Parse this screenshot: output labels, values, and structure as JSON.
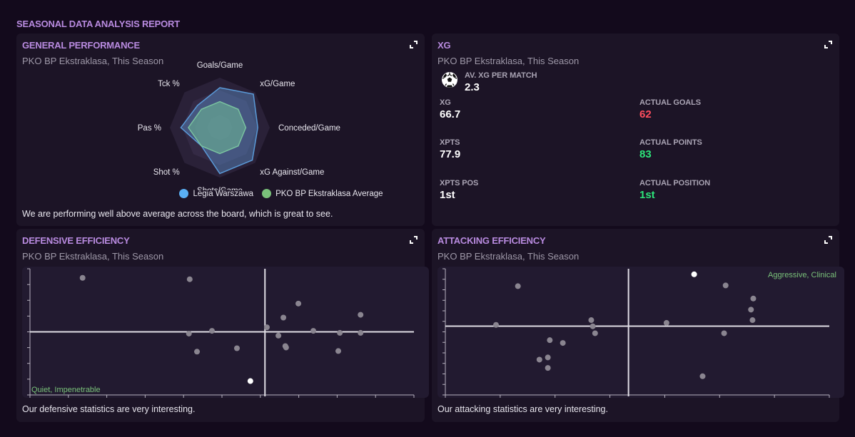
{
  "report_title": "SEASONAL DATA ANALYSIS REPORT",
  "icons": {
    "expand": "expand-icon",
    "ball": "football-icon"
  },
  "colors": {
    "accent": "#b98be0",
    "team": "#5ab0f5",
    "league_avg": "#7ac27a",
    "negative": "#ff4d5e",
    "positive": "#2de57a",
    "point": "#8a8590",
    "highlight_point": "#ffffff"
  },
  "general_performance": {
    "title": "GENERAL PERFORMANCE",
    "subtitle": "PKO BP Ekstraklasa, This Season",
    "footer": "We are performing well above average across the board, which is great to see.",
    "legend": [
      {
        "label": "Legia Warszawa",
        "color": "#5ab0f5"
      },
      {
        "label": "PKO BP Ekstraklasa Average",
        "color": "#7ac27a"
      }
    ]
  },
  "xg": {
    "title": "XG",
    "subtitle": "PKO BP Ekstraklasa, This Season",
    "av_xg_label": "AV. XG PER MATCH",
    "av_xg_value": "2.3",
    "stats": [
      {
        "label": "XG",
        "value": "66.7",
        "tone": "neutral"
      },
      {
        "label": "ACTUAL GOALS",
        "value": "62",
        "tone": "negative"
      },
      {
        "label": "XPTS",
        "value": "77.9",
        "tone": "neutral"
      },
      {
        "label": "ACTUAL POINTS",
        "value": "83",
        "tone": "positive"
      },
      {
        "label": "XPTS POS",
        "value": "1st",
        "tone": "neutral"
      },
      {
        "label": "ACTUAL POSITION",
        "value": "1st",
        "tone": "positive"
      }
    ]
  },
  "defensive_efficiency": {
    "title": "DEFENSIVE EFFICIENCY",
    "subtitle": "PKO BP Ekstraklasa, This Season",
    "footer": "Our defensive statistics are very interesting."
  },
  "attacking_efficiency": {
    "title": "ATTACKING EFFICIENCY",
    "subtitle": "PKO BP Ekstraklasa, This Season",
    "footer": "Our attacking statistics are very interesting."
  },
  "chart_data": [
    {
      "type": "radar",
      "title": "General Performance",
      "axes": [
        "Goals/Game",
        "xG/Game",
        "Conceded/Game",
        "xG Against/Game",
        "Shots/Game",
        "Shot %",
        "Pas %",
        "Tck %"
      ],
      "range": [
        0,
        1
      ],
      "rings": 4,
      "series": [
        {
          "name": "Legia Warszawa",
          "color": "#5ab0f5",
          "values": [
            0.8,
            0.95,
            0.76,
            0.92,
            0.92,
            0.52,
            0.78,
            0.63
          ]
        },
        {
          "name": "PKO BP Ekstraklasa Average",
          "color": "#7ac27a",
          "values": [
            0.52,
            0.52,
            0.52,
            0.52,
            0.52,
            0.52,
            0.63,
            0.52
          ]
        }
      ],
      "legend_position": "bottom"
    },
    {
      "type": "scatter",
      "title": "Defensive Efficiency",
      "xlim": [
        0,
        1
      ],
      "ylim": [
        0,
        1
      ],
      "x_ticks": 10,
      "y_ticks": 8,
      "x_divider": 0.612,
      "y_divider": 0.5,
      "quadrant_label": {
        "text": "Quiet, Impenetrable",
        "position": "bottom-left"
      },
      "points": [
        {
          "x": 0.137,
          "y": 0.928
        },
        {
          "x": 0.416,
          "y": 0.917
        },
        {
          "x": 0.414,
          "y": 0.486
        },
        {
          "x": 0.474,
          "y": 0.508
        },
        {
          "x": 0.435,
          "y": 0.343
        },
        {
          "x": 0.539,
          "y": 0.37
        },
        {
          "x": 0.617,
          "y": 0.536
        },
        {
          "x": 0.66,
          "y": 0.613
        },
        {
          "x": 0.699,
          "y": 0.724
        },
        {
          "x": 0.647,
          "y": 0.47
        },
        {
          "x": 0.665,
          "y": 0.387
        },
        {
          "x": 0.667,
          "y": 0.376
        },
        {
          "x": 0.738,
          "y": 0.508
        },
        {
          "x": 0.807,
          "y": 0.492
        },
        {
          "x": 0.803,
          "y": 0.348
        },
        {
          "x": 0.861,
          "y": 0.635
        },
        {
          "x": 0.861,
          "y": 0.492
        },
        {
          "x": 0.574,
          "y": 0.11,
          "highlight": true
        }
      ]
    },
    {
      "type": "scatter",
      "title": "Attacking Efficiency",
      "xlim": [
        0,
        1
      ],
      "ylim": [
        0,
        1
      ],
      "x_ticks": 7,
      "y_ticks": 12,
      "x_divider": 0.477,
      "y_divider": 0.545,
      "quadrant_label": {
        "text": "Aggressive, Clinical",
        "position": "top-right"
      },
      "points": [
        {
          "x": 0.189,
          "y": 0.862
        },
        {
          "x": 0.132,
          "y": 0.555
        },
        {
          "x": 0.38,
          "y": 0.593
        },
        {
          "x": 0.384,
          "y": 0.544
        },
        {
          "x": 0.39,
          "y": 0.489
        },
        {
          "x": 0.272,
          "y": 0.434
        },
        {
          "x": 0.306,
          "y": 0.412
        },
        {
          "x": 0.245,
          "y": 0.28
        },
        {
          "x": 0.267,
          "y": 0.297
        },
        {
          "x": 0.267,
          "y": 0.214
        },
        {
          "x": 0.73,
          "y": 0.868
        },
        {
          "x": 0.802,
          "y": 0.764
        },
        {
          "x": 0.796,
          "y": 0.676
        },
        {
          "x": 0.8,
          "y": 0.593
        },
        {
          "x": 0.576,
          "y": 0.571
        },
        {
          "x": 0.726,
          "y": 0.489
        },
        {
          "x": 0.67,
          "y": 0.148
        },
        {
          "x": 0.648,
          "y": 0.956,
          "highlight": true
        }
      ]
    }
  ]
}
